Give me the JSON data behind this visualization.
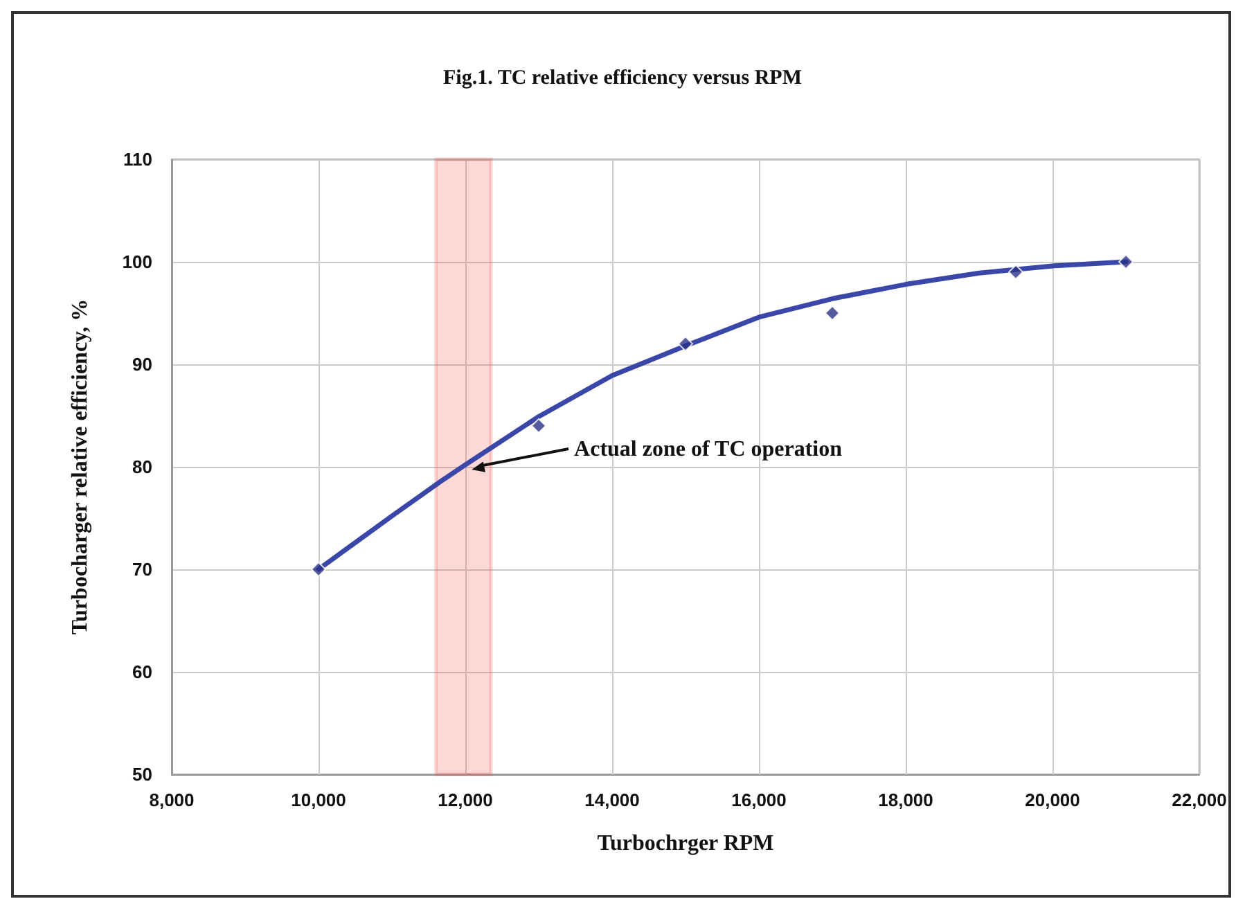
{
  "chart_data": {
    "type": "scatter",
    "title": "Fig.1. TC relative efficiency versus RPM",
    "xlabel": "Turbochrger RPM",
    "ylabel": "Turbocharger relative efficiency, %",
    "series": [
      {
        "color": "#2a2f86",
        "marker": "diamond",
        "x": [
          10000,
          13000,
          15000,
          17000,
          19500,
          21000
        ],
        "values": [
          70,
          84,
          92,
          95,
          99,
          100
        ]
      },
      {
        "type": "line",
        "color": "#3a47a8",
        "marker": "none",
        "x": [
          10000,
          11000,
          11670,
          12000,
          13000,
          14000,
          15000,
          16000,
          17000,
          18000,
          19000,
          20000,
          21000
        ],
        "values": [
          70,
          75.2,
          78.6,
          80.2,
          84.9,
          88.9,
          91.8,
          94.6,
          96.4,
          97.8,
          98.9,
          99.6,
          100
        ]
      }
    ],
    "xlim": [
      8000,
      22000
    ],
    "xticks": [
      {
        "value": 8000,
        "label": "8,000"
      },
      {
        "value": 10000,
        "label": "10,000"
      },
      {
        "value": 12000,
        "label": "12,000"
      },
      {
        "value": 14000,
        "label": "14,000"
      },
      {
        "value": 16000,
        "label": "16,000"
      },
      {
        "value": 18000,
        "label": "18,000"
      },
      {
        "value": 20000,
        "label": "20,000"
      },
      {
        "value": 22000,
        "label": "22,000"
      }
    ],
    "ylim": [
      50,
      110
    ],
    "yticks": [
      50,
      60,
      70,
      80,
      90,
      100,
      110
    ],
    "bands": [
      {
        "axis": "x",
        "from": 11600,
        "to": 12350,
        "label": "Actual zone of TC operation",
        "color": "#ee2a24"
      }
    ],
    "grid": true
  }
}
